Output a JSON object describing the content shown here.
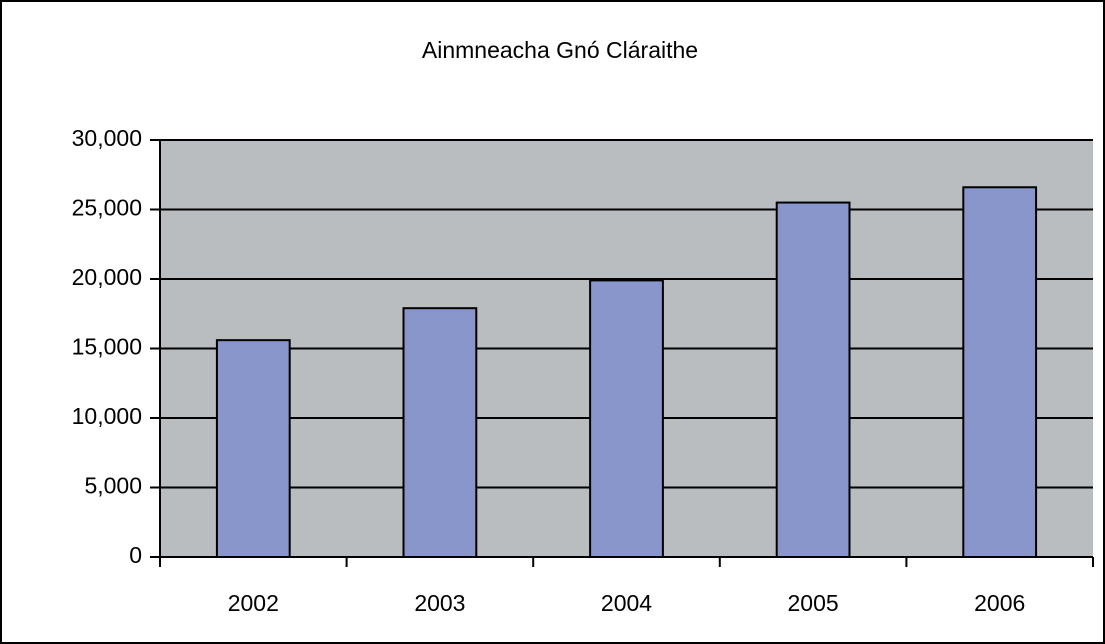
{
  "chart_data": {
    "type": "bar",
    "title": "Ainmneacha Gnó Cláraithe",
    "categories": [
      "2002",
      "2003",
      "2004",
      "2005",
      "2006"
    ],
    "values": [
      15600,
      17900,
      19900,
      25500,
      26600
    ],
    "color": "#8896cc",
    "plot_background": "#b9bdc0",
    "ylim": [
      0,
      30000
    ],
    "yticks": [
      0,
      {
        "value": 5000,
        "label": "5,000"
      },
      {
        "value": 10000,
        "label": "10,000"
      },
      {
        "value": 15000,
        "label": "15,000"
      },
      {
        "value": 20000,
        "label": "20,000"
      },
      {
        "value": 25000,
        "label": "25,000"
      },
      {
        "value": 30000,
        "label": "30,000"
      }
    ],
    "grid": true
  }
}
